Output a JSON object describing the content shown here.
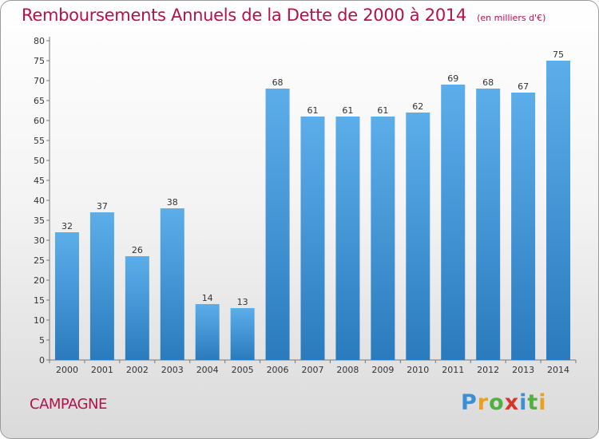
{
  "chart_data": {
    "type": "bar",
    "title": "Remboursements Annuels de la Dette de 2000 à 2014",
    "subtitle": "(en milliers d'€)",
    "categories": [
      "2000",
      "2001",
      "2002",
      "2003",
      "2004",
      "2005",
      "2006",
      "2007",
      "2008",
      "2009",
      "2010",
      "2011",
      "2012",
      "2013",
      "2014"
    ],
    "values": [
      32,
      37,
      26,
      38,
      14,
      13,
      68,
      61,
      61,
      61,
      62,
      69,
      68,
      67,
      75
    ],
    "ylim": [
      0,
      80
    ],
    "ytick_step": 5,
    "xlabel": "",
    "ylabel": "",
    "grid": false,
    "colors": {
      "bar_light": "#5caeea",
      "bar_dark": "#2a7bbd",
      "value_label": "#333333"
    }
  },
  "footer": {
    "commune": "CAMPAGNE",
    "brand": [
      {
        "ch": "P",
        "color": "#3a8fd6"
      },
      {
        "ch": "r",
        "color": "#e8a21e"
      },
      {
        "ch": "o",
        "color": "#52b043"
      },
      {
        "ch": "x",
        "color": "#d8342c"
      },
      {
        "ch": "i",
        "color": "#3a8fd6"
      },
      {
        "ch": "t",
        "color": "#52b043"
      },
      {
        "ch": "i",
        "color": "#e8a21e"
      }
    ]
  }
}
